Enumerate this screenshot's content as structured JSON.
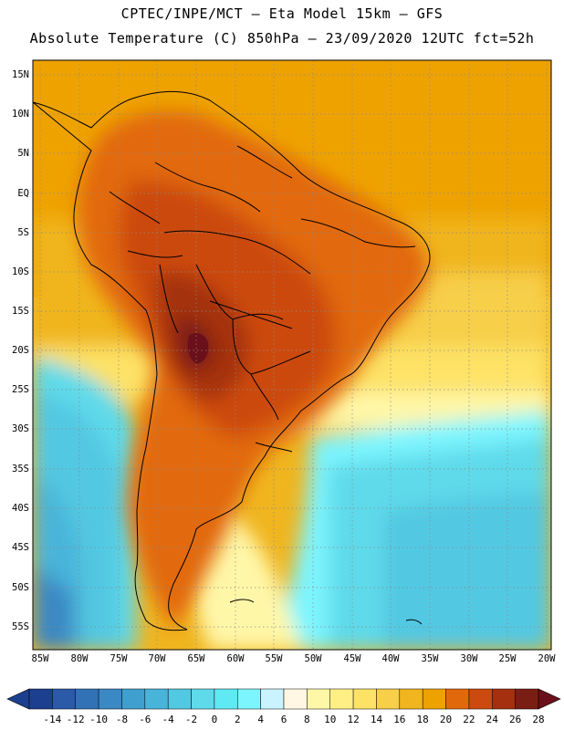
{
  "header": {
    "line1": "CPTEC/INPE/MCT –  Eta Model 15km – GFS",
    "line2": "Absolute Temperature (C) 850hPa – 23/09/2020 12UTC fct=52h"
  },
  "axes": {
    "lat_labels": [
      "15N",
      "10N",
      "5N",
      "EQ",
      "5S",
      "10S",
      "15S",
      "20S",
      "25S",
      "30S",
      "35S",
      "40S",
      "45S",
      "50S",
      "55S"
    ],
    "lon_labels": [
      "85W",
      "80W",
      "75W",
      "70W",
      "65W",
      "60W",
      "55W",
      "50W",
      "45W",
      "40W",
      "35W",
      "30W",
      "25W",
      "20W"
    ]
  },
  "colorbar": {
    "labels": [
      "-14",
      "-12",
      "-10",
      "-8",
      "-6",
      "-4",
      "-2",
      "0",
      "2",
      "4",
      "6",
      "8",
      "10",
      "12",
      "14",
      "16",
      "18",
      "20",
      "22",
      "24",
      "26",
      "28"
    ],
    "colors": [
      "#1c3f8f",
      "#2a5aa8",
      "#3172b6",
      "#3a88c4",
      "#3f9fcf",
      "#48b4d9",
      "#52c8e2",
      "#5fdaea",
      "#5fe9f2",
      "#7df5ff",
      "#c9f3ff",
      "#fff7e3",
      "#fff7a8",
      "#ffef85",
      "#fde265",
      "#f7cf48",
      "#f0b51f",
      "#eea200",
      "#e2690b",
      "#cc4a10",
      "#a4300f",
      "#7a1e14"
    ],
    "under_color": "#1c3f8f",
    "over_color": "#6b0f1a"
  }
}
